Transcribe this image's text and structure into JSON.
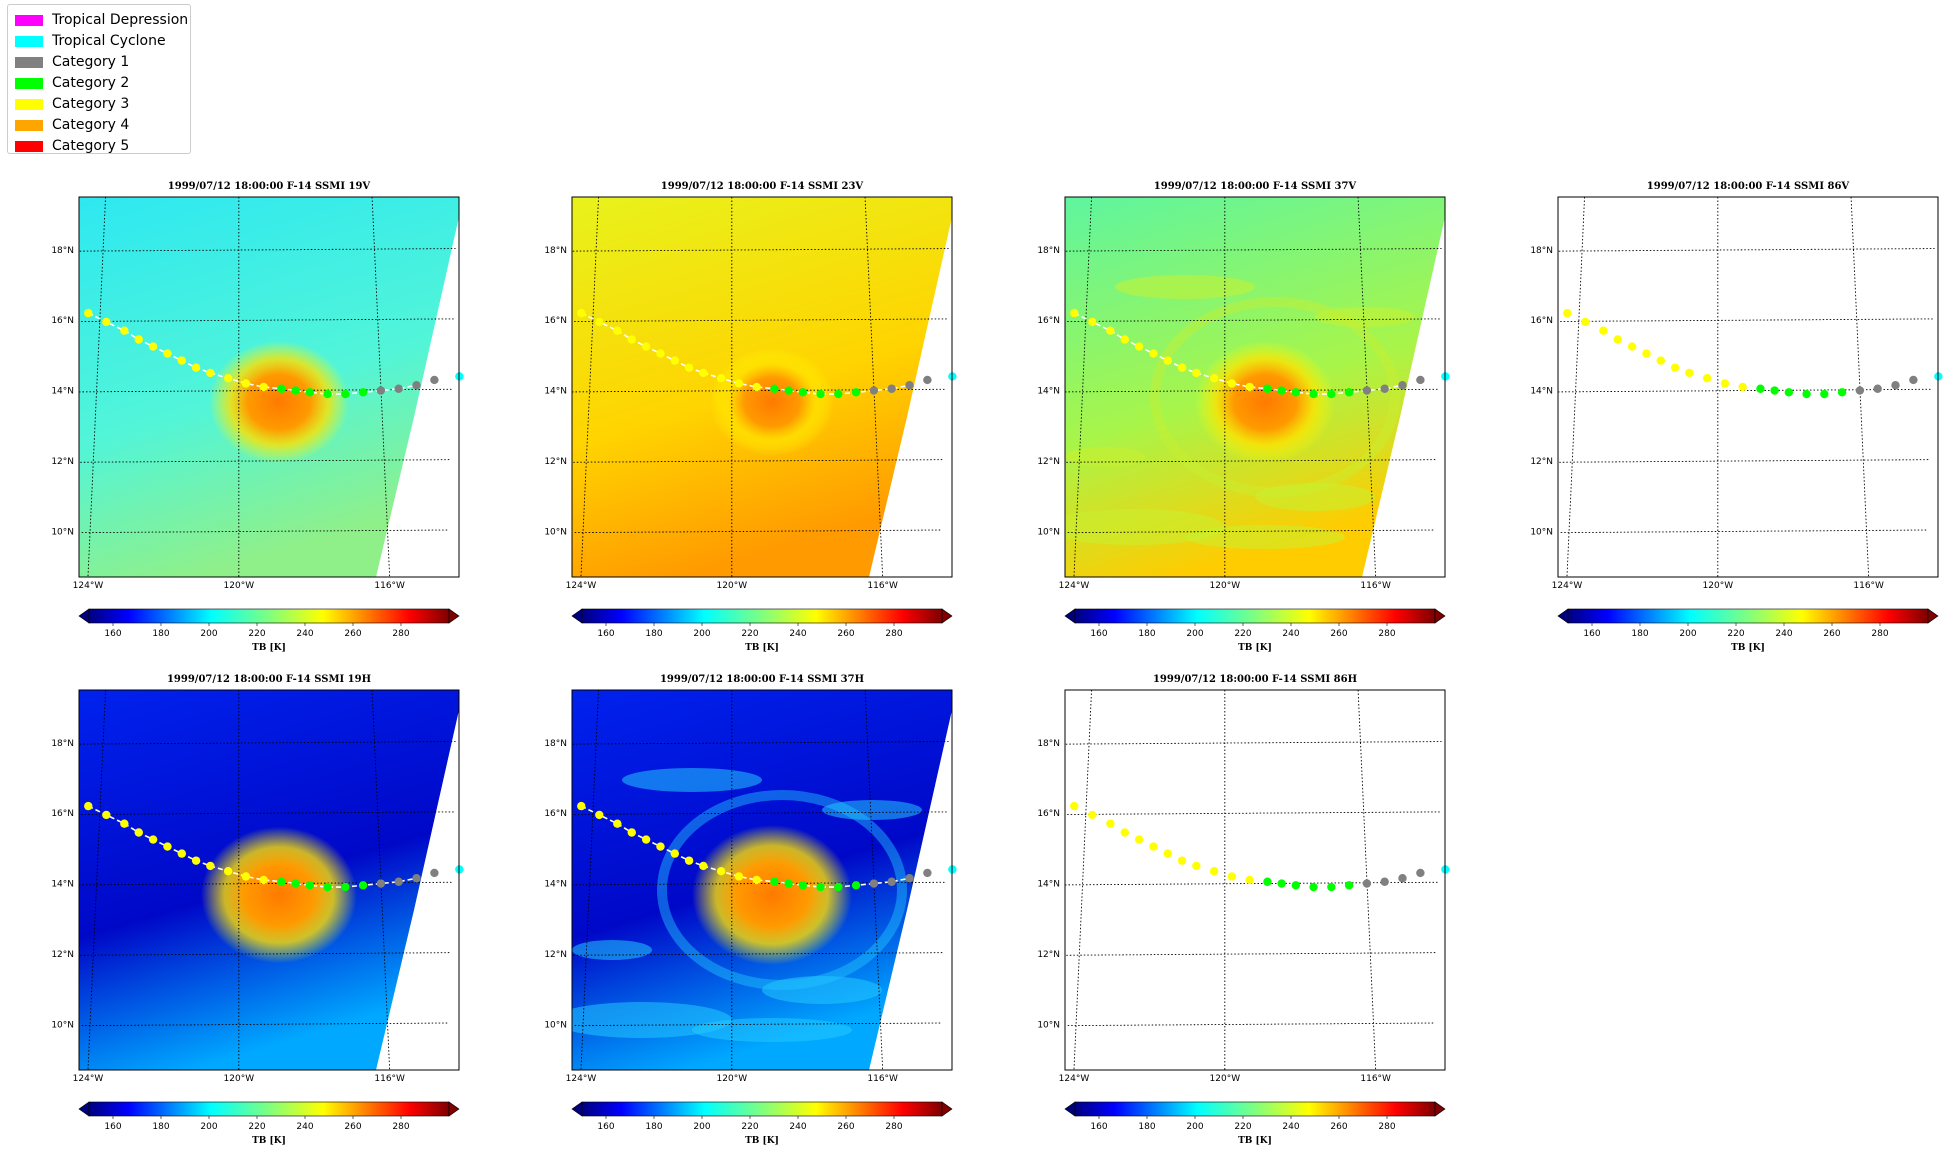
{
  "legend": {
    "items": [
      {
        "label": "Tropical Depression",
        "color": "#ff00ff"
      },
      {
        "label": "Tropical Cyclone",
        "color": "#00ffff"
      },
      {
        "label": "Category 1",
        "color": "#808080"
      },
      {
        "label": "Category 2",
        "color": "#00ff00"
      },
      {
        "label": "Category 3",
        "color": "#ffff00"
      },
      {
        "label": "Category 4",
        "color": "#ffa500"
      },
      {
        "label": "Category 5",
        "color": "#ff0000"
      }
    ]
  },
  "chart_data": [
    {
      "type": "heatmap",
      "title": "1999/07/12 18:00:00  F-14 SSMI 19V",
      "background": "cyan",
      "storm_intensity": 0.55,
      "bands": false,
      "swath": true
    },
    {
      "type": "heatmap",
      "title": "1999/07/12 18:00:00  F-14 SSMI 23V",
      "background": "yellow",
      "storm_intensity": 0.35,
      "bands": false,
      "swath": true
    },
    {
      "type": "heatmap",
      "title": "1999/07/12 18:00:00  F-14 SSMI 37V",
      "background": "green",
      "storm_intensity": 0.55,
      "bands": true,
      "swath": true
    },
    {
      "type": "heatmap",
      "title": "1999/07/12 18:00:00  F-14 SSMI 86V",
      "background": "none",
      "storm_intensity": 0,
      "bands": false,
      "swath": false
    },
    {
      "type": "heatmap",
      "title": "1999/07/12 18:00:00  F-14 SSMI 19H",
      "background": "blue",
      "storm_intensity": 0.75,
      "bands": false,
      "swath": true
    },
    {
      "type": "heatmap",
      "title": "1999/07/12 18:00:00  F-14 SSMI 37H",
      "background": "blue",
      "storm_intensity": 0.8,
      "bands": true,
      "swath": true
    },
    {
      "type": "heatmap",
      "title": "1999/07/12 18:00:00  F-14 SSMI 86H",
      "background": "none",
      "storm_intensity": 0,
      "bands": false,
      "swath": false
    }
  ],
  "map": {
    "lon_range": [
      -124.5,
      -113.8
    ],
    "lat_range": [
      8.7,
      19.5
    ],
    "lon_ticks": [
      {
        "value": -124,
        "label": "124°W"
      },
      {
        "value": -120,
        "label": "120°W"
      },
      {
        "value": -116,
        "label": "116°W"
      }
    ],
    "lat_ticks": [
      {
        "value": 10,
        "label": "10°N"
      },
      {
        "value": 12,
        "label": "12°N"
      },
      {
        "value": 14,
        "label": "14°N"
      },
      {
        "value": 16,
        "label": "16°N"
      },
      {
        "value": 18,
        "label": "18°N"
      }
    ],
    "track": [
      {
        "lon": -124.2,
        "lat": 16.2,
        "category": "Category 3"
      },
      {
        "lon": -123.7,
        "lat": 15.95,
        "category": "Category 3"
      },
      {
        "lon": -123.2,
        "lat": 15.7,
        "category": "Category 3"
      },
      {
        "lon": -122.8,
        "lat": 15.45,
        "category": "Category 3"
      },
      {
        "lon": -122.4,
        "lat": 15.25,
        "category": "Category 3"
      },
      {
        "lon": -122.0,
        "lat": 15.05,
        "category": "Category 3"
      },
      {
        "lon": -121.6,
        "lat": 14.85,
        "category": "Category 3"
      },
      {
        "lon": -121.2,
        "lat": 14.65,
        "category": "Category 3"
      },
      {
        "lon": -120.8,
        "lat": 14.5,
        "category": "Category 3"
      },
      {
        "lon": -120.3,
        "lat": 14.35,
        "category": "Category 3"
      },
      {
        "lon": -119.8,
        "lat": 14.2,
        "category": "Category 3"
      },
      {
        "lon": -119.3,
        "lat": 14.1,
        "category": "Category 3"
      },
      {
        "lon": -118.8,
        "lat": 14.05,
        "category": "Category 2"
      },
      {
        "lon": -118.4,
        "lat": 14.0,
        "category": "Category 2"
      },
      {
        "lon": -118.0,
        "lat": 13.95,
        "category": "Category 2"
      },
      {
        "lon": -117.5,
        "lat": 13.9,
        "category": "Category 2"
      },
      {
        "lon": -117.0,
        "lat": 13.9,
        "category": "Category 2"
      },
      {
        "lon": -116.5,
        "lat": 13.95,
        "category": "Category 2"
      },
      {
        "lon": -116.0,
        "lat": 14.0,
        "category": "Category 1"
      },
      {
        "lon": -115.5,
        "lat": 14.05,
        "category": "Category 1"
      },
      {
        "lon": -115.0,
        "lat": 14.15,
        "category": "Category 1"
      },
      {
        "lon": -114.5,
        "lat": 14.3,
        "category": "Category 1"
      },
      {
        "lon": -113.8,
        "lat": 14.4,
        "category": "Tropical Cyclone"
      }
    ]
  },
  "colorbar": {
    "label": "TB [K]",
    "vmin": 150,
    "vmax": 300,
    "ticks": [
      "160",
      "180",
      "200",
      "220",
      "240",
      "260",
      "280"
    ]
  }
}
